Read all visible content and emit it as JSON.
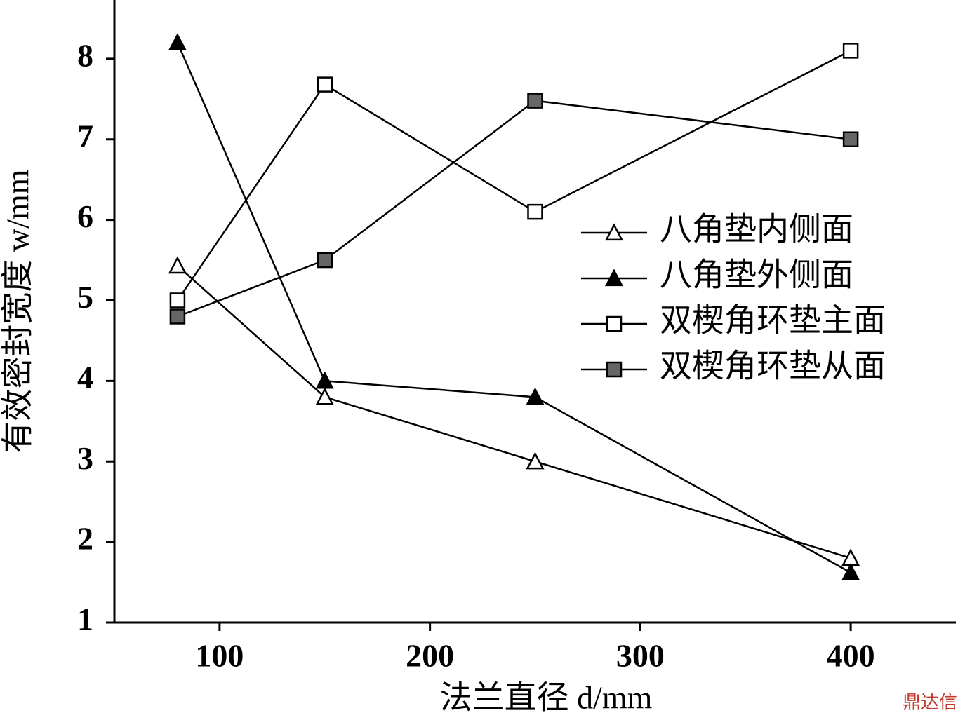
{
  "chart_data": {
    "type": "line",
    "xlabel": "法兰直径 d/mm",
    "ylabel": "有效密封宽度 w/mm",
    "x": [
      80,
      150,
      250,
      400
    ],
    "series": [
      {
        "name": "八角垫内侧面",
        "color": "#000000",
        "marker": "triangle",
        "marker_fill": "#ffffff",
        "values": [
          5.43,
          3.8,
          3.0,
          1.8
        ]
      },
      {
        "name": "八角垫外侧面",
        "color": "#000000",
        "marker": "triangle",
        "marker_fill": "#000000",
        "values": [
          8.2,
          4.0,
          3.8,
          1.62
        ]
      },
      {
        "name": "双楔角环垫主面",
        "color": "#000000",
        "marker": "square",
        "marker_fill": "#ffffff",
        "values": [
          5.0,
          7.68,
          6.1,
          8.1
        ]
      },
      {
        "name": "双楔角环垫从面",
        "color": "#000000",
        "marker": "square",
        "marker_fill": "#666666",
        "values": [
          4.8,
          5.5,
          7.48,
          7.0
        ]
      }
    ],
    "xlim": [
      50,
      450
    ],
    "xticks": [
      100,
      200,
      300,
      400
    ],
    "ylim": [
      1,
      8.73
    ],
    "yticks": [
      1,
      2,
      3,
      4,
      5,
      6,
      7,
      8
    ],
    "legend": "right",
    "watermark": "鼎达信"
  }
}
